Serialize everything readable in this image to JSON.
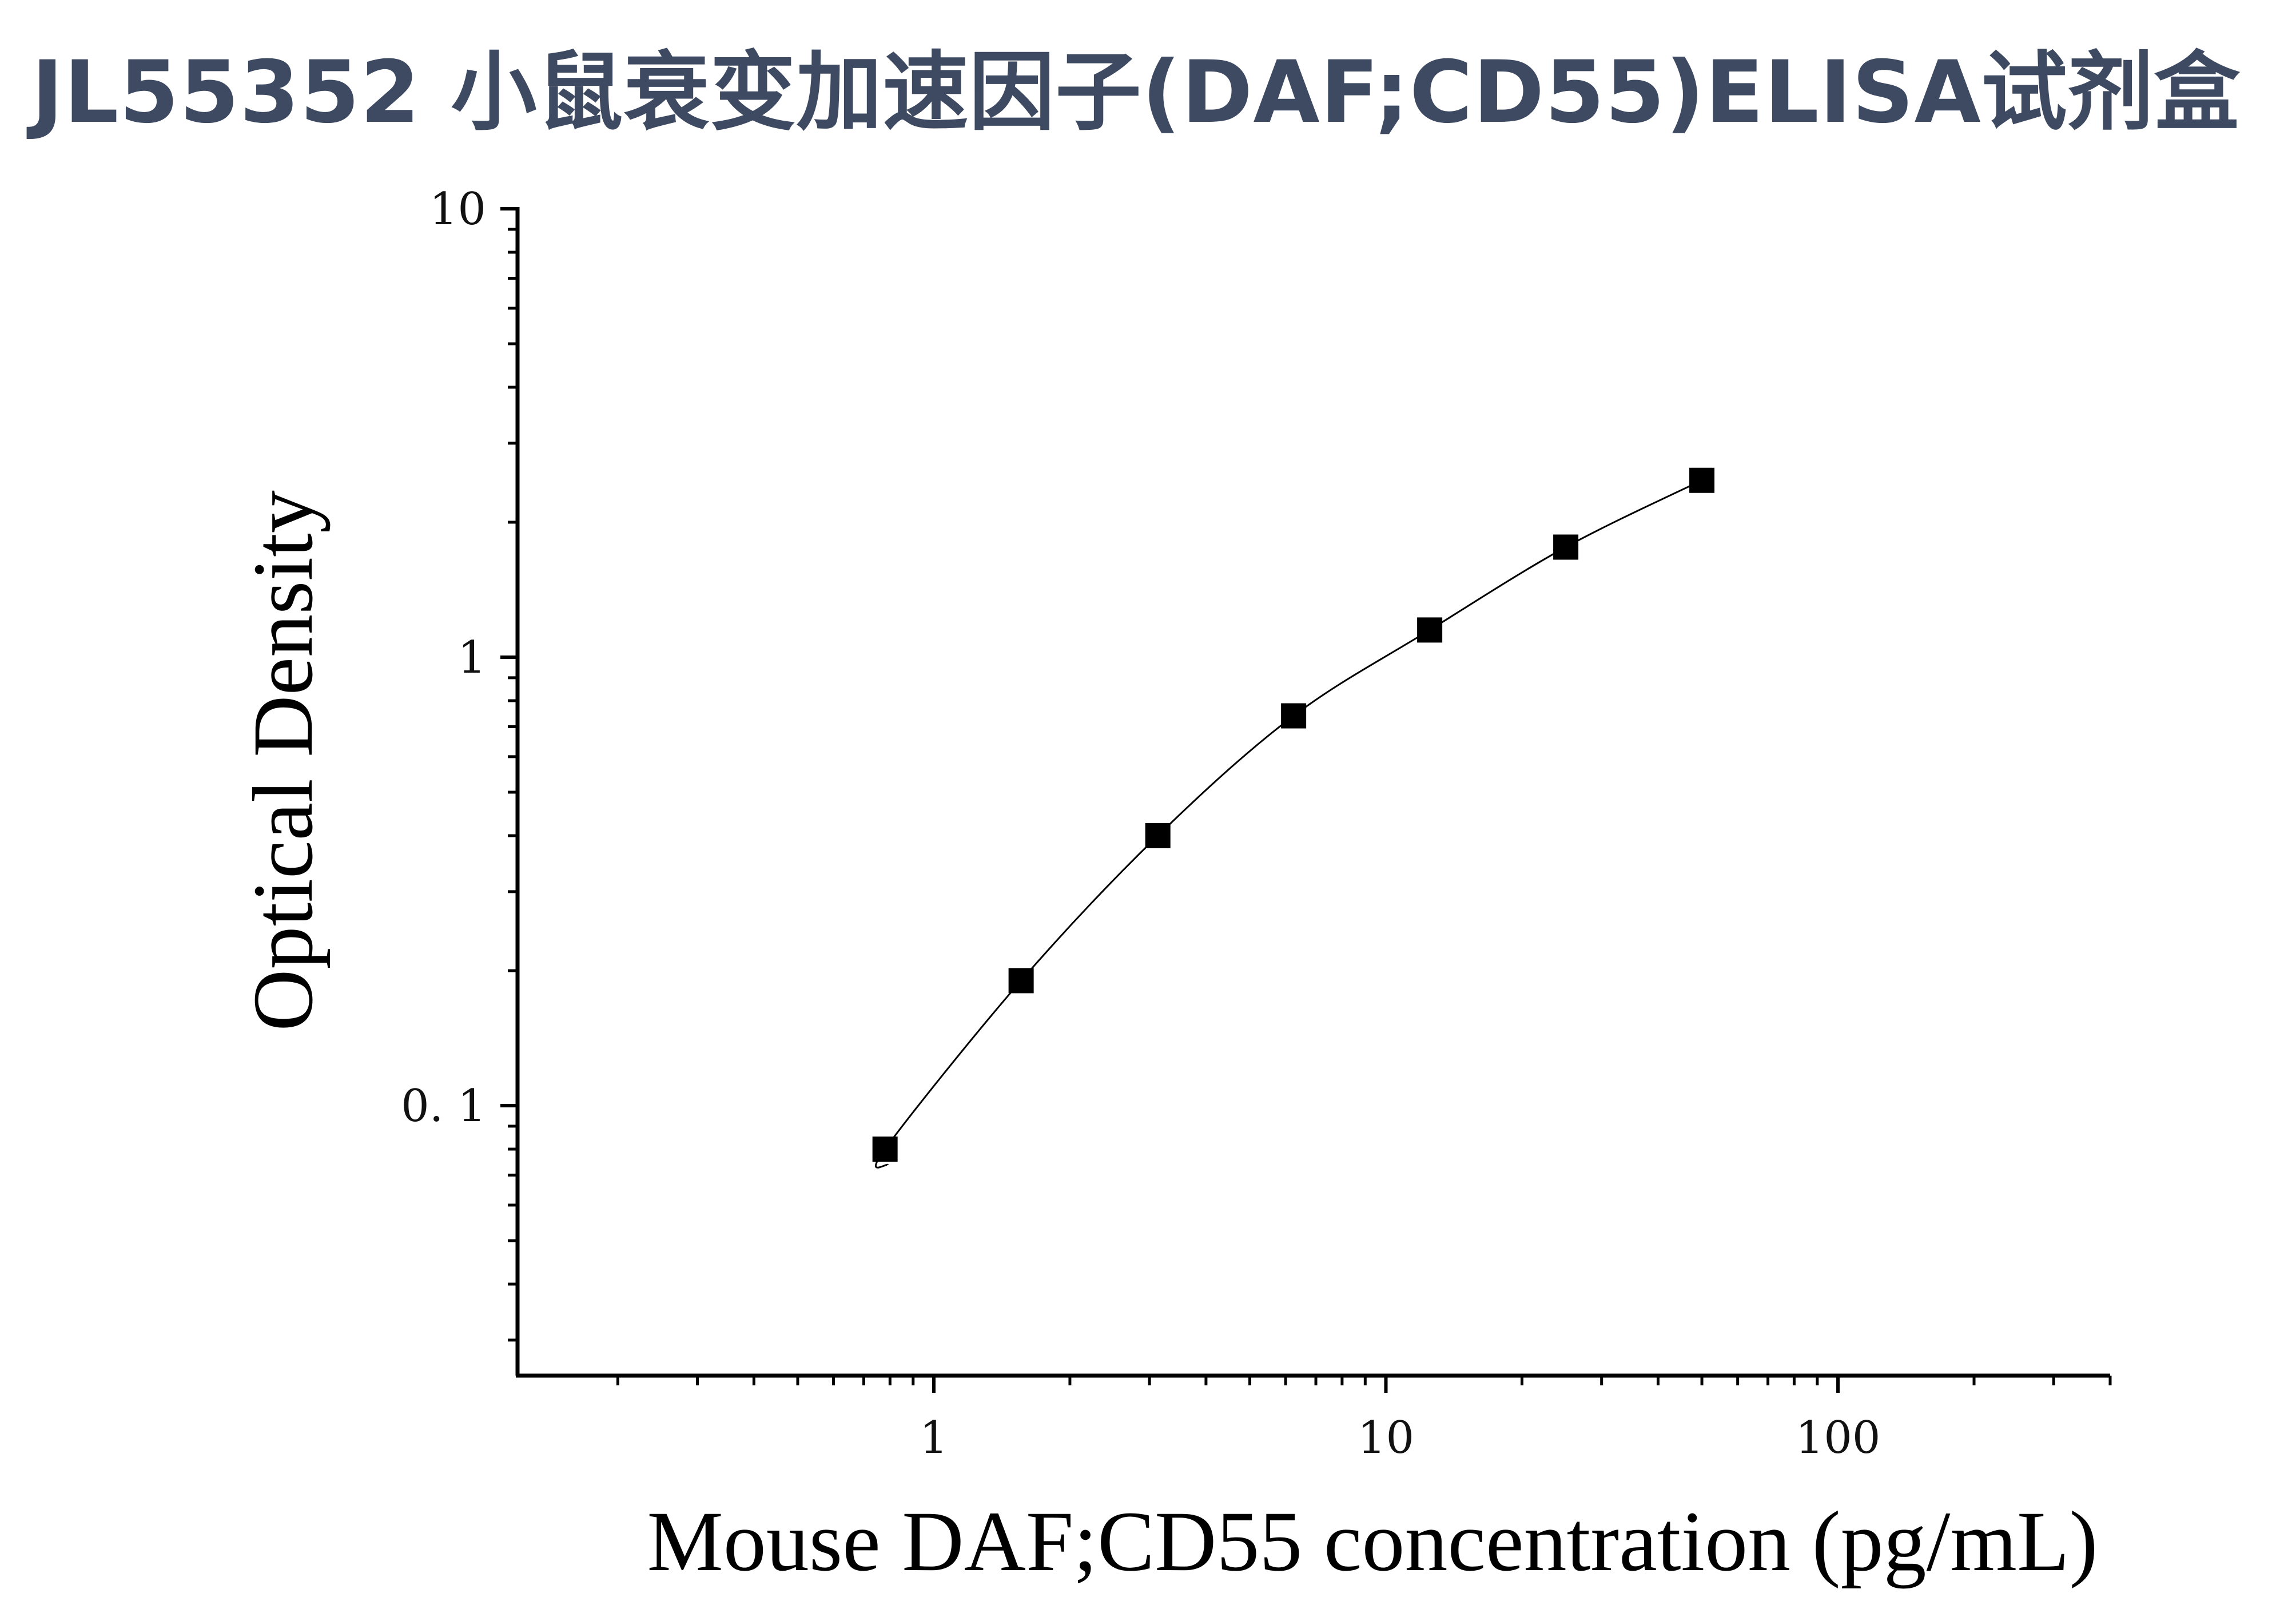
{
  "title": "JL55352 小鼠衰变加速因子(DAF;CD55)ELISA试剂盒",
  "colors": {
    "title": "#3d4a62",
    "axis": "#000000",
    "marker": "#000000",
    "curve": "#000000"
  },
  "chart_data": {
    "type": "scatter",
    "xlabel": "Mouse DAF;CD55 concentration (pg/mL)",
    "ylabel": "Optical Density",
    "xscale": "log",
    "yscale": "log",
    "xlim": [
      0.12,
      400
    ],
    "ylim": [
      0.025,
      10
    ],
    "grid": false,
    "x_ticks": [
      {
        "value": 1,
        "label": "1"
      },
      {
        "value": 10,
        "label": "10"
      },
      {
        "value": 100,
        "label": "100"
      }
    ],
    "y_ticks": [
      {
        "value": 0.1,
        "label": "0. 1"
      },
      {
        "value": 1,
        "label": "1"
      },
      {
        "value": 10,
        "label": "10"
      }
    ],
    "series": [
      {
        "marker": "square",
        "x": [
          0.78,
          1.56,
          3.13,
          6.25,
          12.5,
          25,
          50
        ],
        "y": [
          0.08,
          0.19,
          0.4,
          0.74,
          1.15,
          1.76,
          2.48
        ],
        "fit_curve": true
      }
    ]
  }
}
